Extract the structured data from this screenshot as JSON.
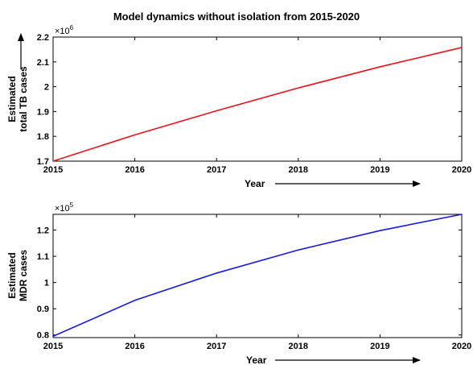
{
  "title": "Model dynamics without isolation from 2015-2020",
  "chart_data": [
    {
      "type": "line",
      "x": [
        2015,
        2016,
        2017,
        2018,
        2019,
        2020
      ],
      "series": [
        {
          "values": [
            1.7,
            1.806,
            1.903,
            1.995,
            2.08,
            2.158
          ],
          "color": "#e8121b"
        }
      ],
      "xlim": [
        2015,
        2020
      ],
      "ylim": [
        1.7,
        2.2
      ],
      "xticks": [
        "2015",
        "2016",
        "2017",
        "2018",
        "2019",
        "2020"
      ],
      "yticks": [
        "1.7",
        "1.8",
        "1.9",
        "2",
        "2.1",
        "2.2"
      ],
      "ylabel_line1": "Estimated",
      "ylabel_line2": "total TB cases",
      "xlabel": "Year",
      "multiplier_base": "×10",
      "multiplier_exp": "6"
    },
    {
      "type": "line",
      "x": [
        2015,
        2016,
        2017,
        2018,
        2019,
        2020
      ],
      "series": [
        {
          "values": [
            0.795,
            0.932,
            1.036,
            1.124,
            1.198,
            1.26
          ],
          "color": "#1a1ae0"
        }
      ],
      "xlim": [
        2015,
        2020
      ],
      "ylim": [
        0.79,
        1.26
      ],
      "xticks": [
        "2015",
        "2016",
        "2017",
        "2018",
        "2019",
        "2020"
      ],
      "yticks": [
        "0.8",
        "0.9",
        "1",
        "1.1",
        "1.2"
      ],
      "ylabel_line1": "Estimated",
      "ylabel_line2": "MDR cases",
      "xlabel": "Year",
      "multiplier_base": "×10",
      "multiplier_exp": "5"
    }
  ]
}
